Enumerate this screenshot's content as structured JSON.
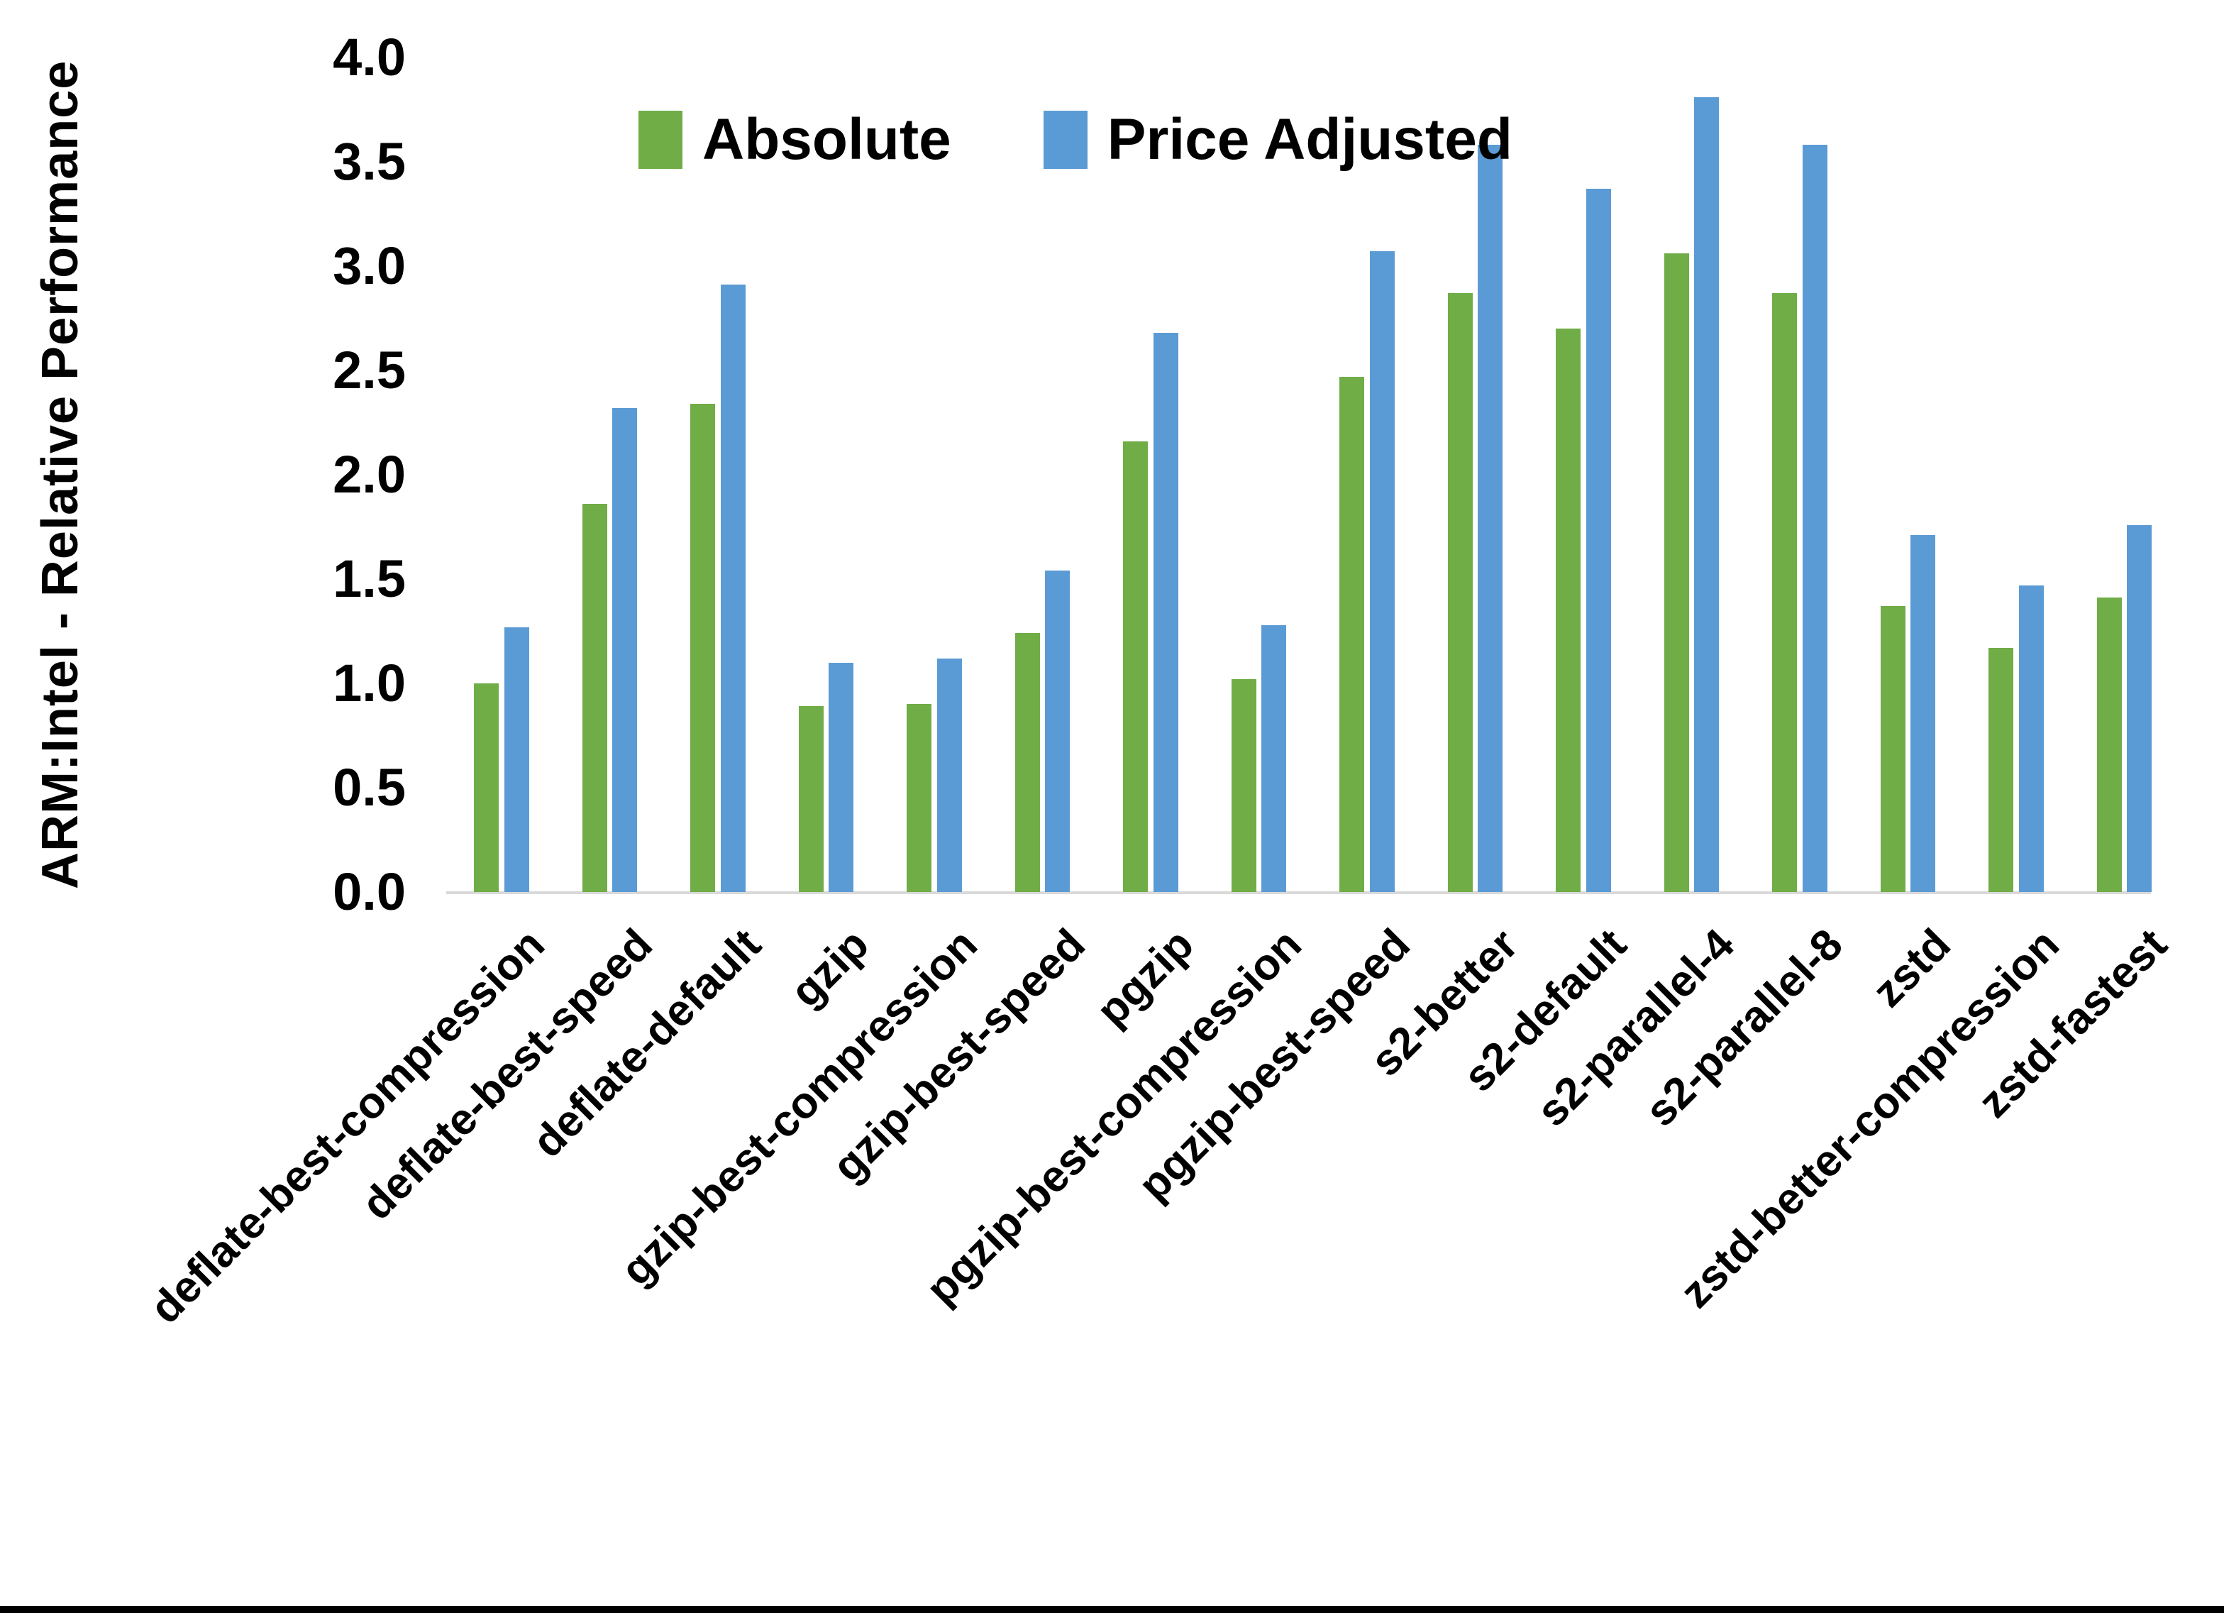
{
  "chart_data": {
    "type": "bar",
    "title": "",
    "xlabel": "",
    "ylabel": "ARM:Intel - Relative Performance",
    "ylim": [
      0.0,
      4.0
    ],
    "ytick_step": 0.5,
    "ytick_labels": [
      "4.0",
      "3.5",
      "3.0",
      "2.5",
      "2.0",
      "1.5",
      "1.0",
      "0.5",
      "0.0"
    ],
    "grid": false,
    "legend_position": "top-center",
    "categories": [
      "deflate-best-compression",
      "deflate-best-speed",
      "deflate-default",
      "gzip",
      "gzip-best-compression",
      "gzip-best-speed",
      "pgzip",
      "pgzip-best-compression",
      "pgzip-best-speed",
      "s2-better",
      "s2-default",
      "s2-parallel-4",
      "s2-parallel-8",
      "zstd",
      "zstd-better-compression",
      "zstd-fastest"
    ],
    "series": [
      {
        "name": "Absolute",
        "color": "#70AD47",
        "values": [
          1.0,
          1.86,
          2.34,
          0.89,
          0.9,
          1.24,
          2.16,
          1.02,
          2.47,
          2.87,
          2.7,
          3.06,
          2.87,
          1.37,
          1.17,
          1.41
        ]
      },
      {
        "name": "Price Adjusted",
        "color": "#5B9BD5",
        "values": [
          1.27,
          2.32,
          2.91,
          1.1,
          1.12,
          1.54,
          2.68,
          1.28,
          3.07,
          3.58,
          3.37,
          3.81,
          3.58,
          1.71,
          1.47,
          1.76
        ]
      }
    ]
  },
  "colors": {
    "axis_line": "#D9D9D9",
    "text": "#000000",
    "frame_bottom_border": "#000000",
    "background": "#FFFFFF"
  }
}
